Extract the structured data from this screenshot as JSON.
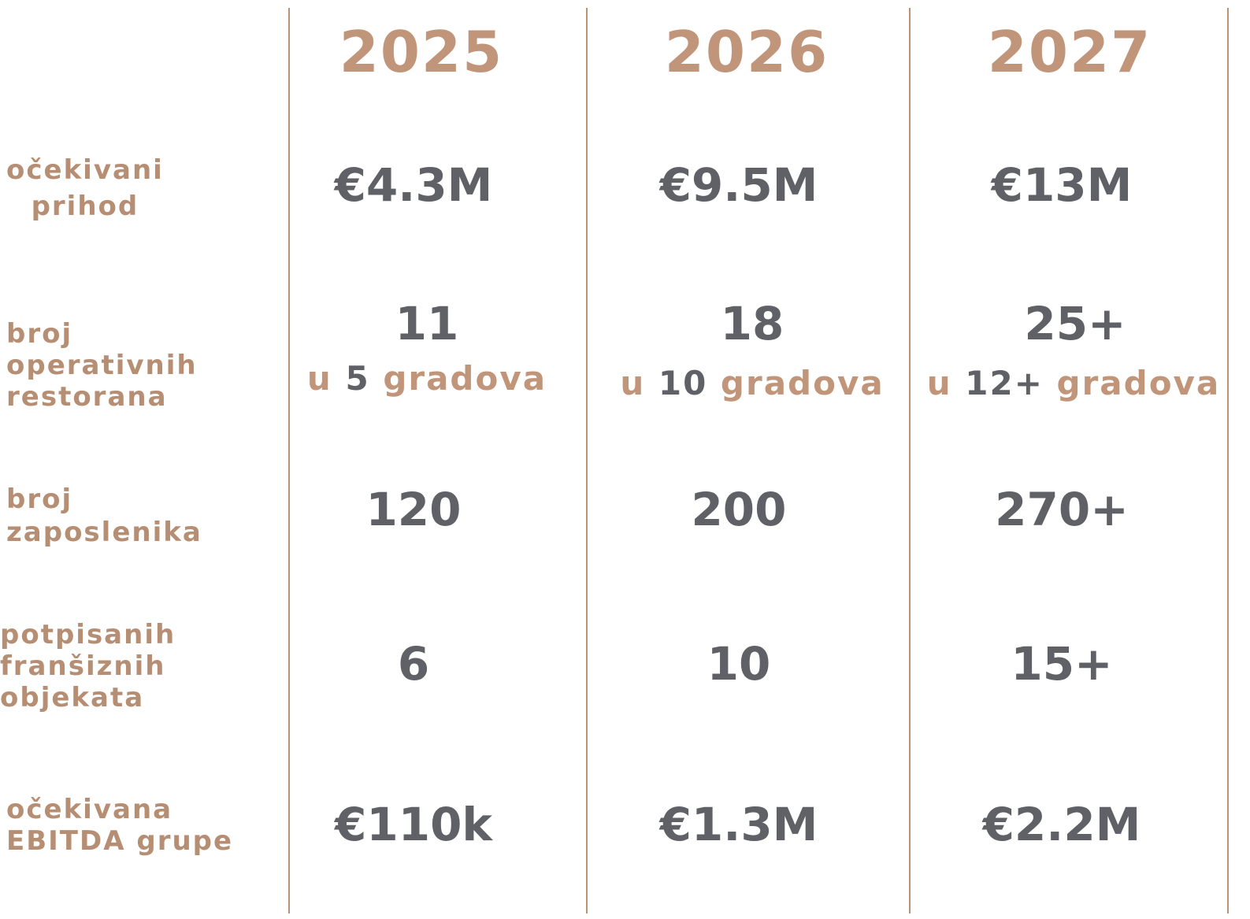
{
  "colors": {
    "accent": "#c0957a",
    "value": "#5f6166",
    "divider": "#b99277"
  },
  "years": [
    "2025",
    "2026",
    "2027"
  ],
  "rows": {
    "revenue": {
      "label_lines": [
        "očekivani",
        "prihod"
      ],
      "values": [
        "€4.3M",
        "€9.5M",
        "€13M"
      ]
    },
    "restaurants": {
      "label_lines": [
        "broj",
        "operativnih",
        "restorana"
      ],
      "values": [
        "11",
        "18",
        "25+"
      ],
      "sub_prefix": "u",
      "sub_counts": [
        "5",
        "10",
        "12+"
      ],
      "sub_suffix": "gradova"
    },
    "employees": {
      "label_lines": [
        "broj",
        "zaposlenika"
      ],
      "values": [
        "120",
        "200",
        "270+"
      ]
    },
    "franchises": {
      "label_lines": [
        "potpisanih",
        "franšiznih",
        "objekata"
      ],
      "values": [
        "6",
        "10",
        "15+"
      ]
    },
    "ebitda": {
      "label_lines": [
        "očekivana",
        "EBITDA grupe"
      ],
      "values": [
        "€110k",
        "€1.3M",
        "€2.2M"
      ]
    }
  }
}
